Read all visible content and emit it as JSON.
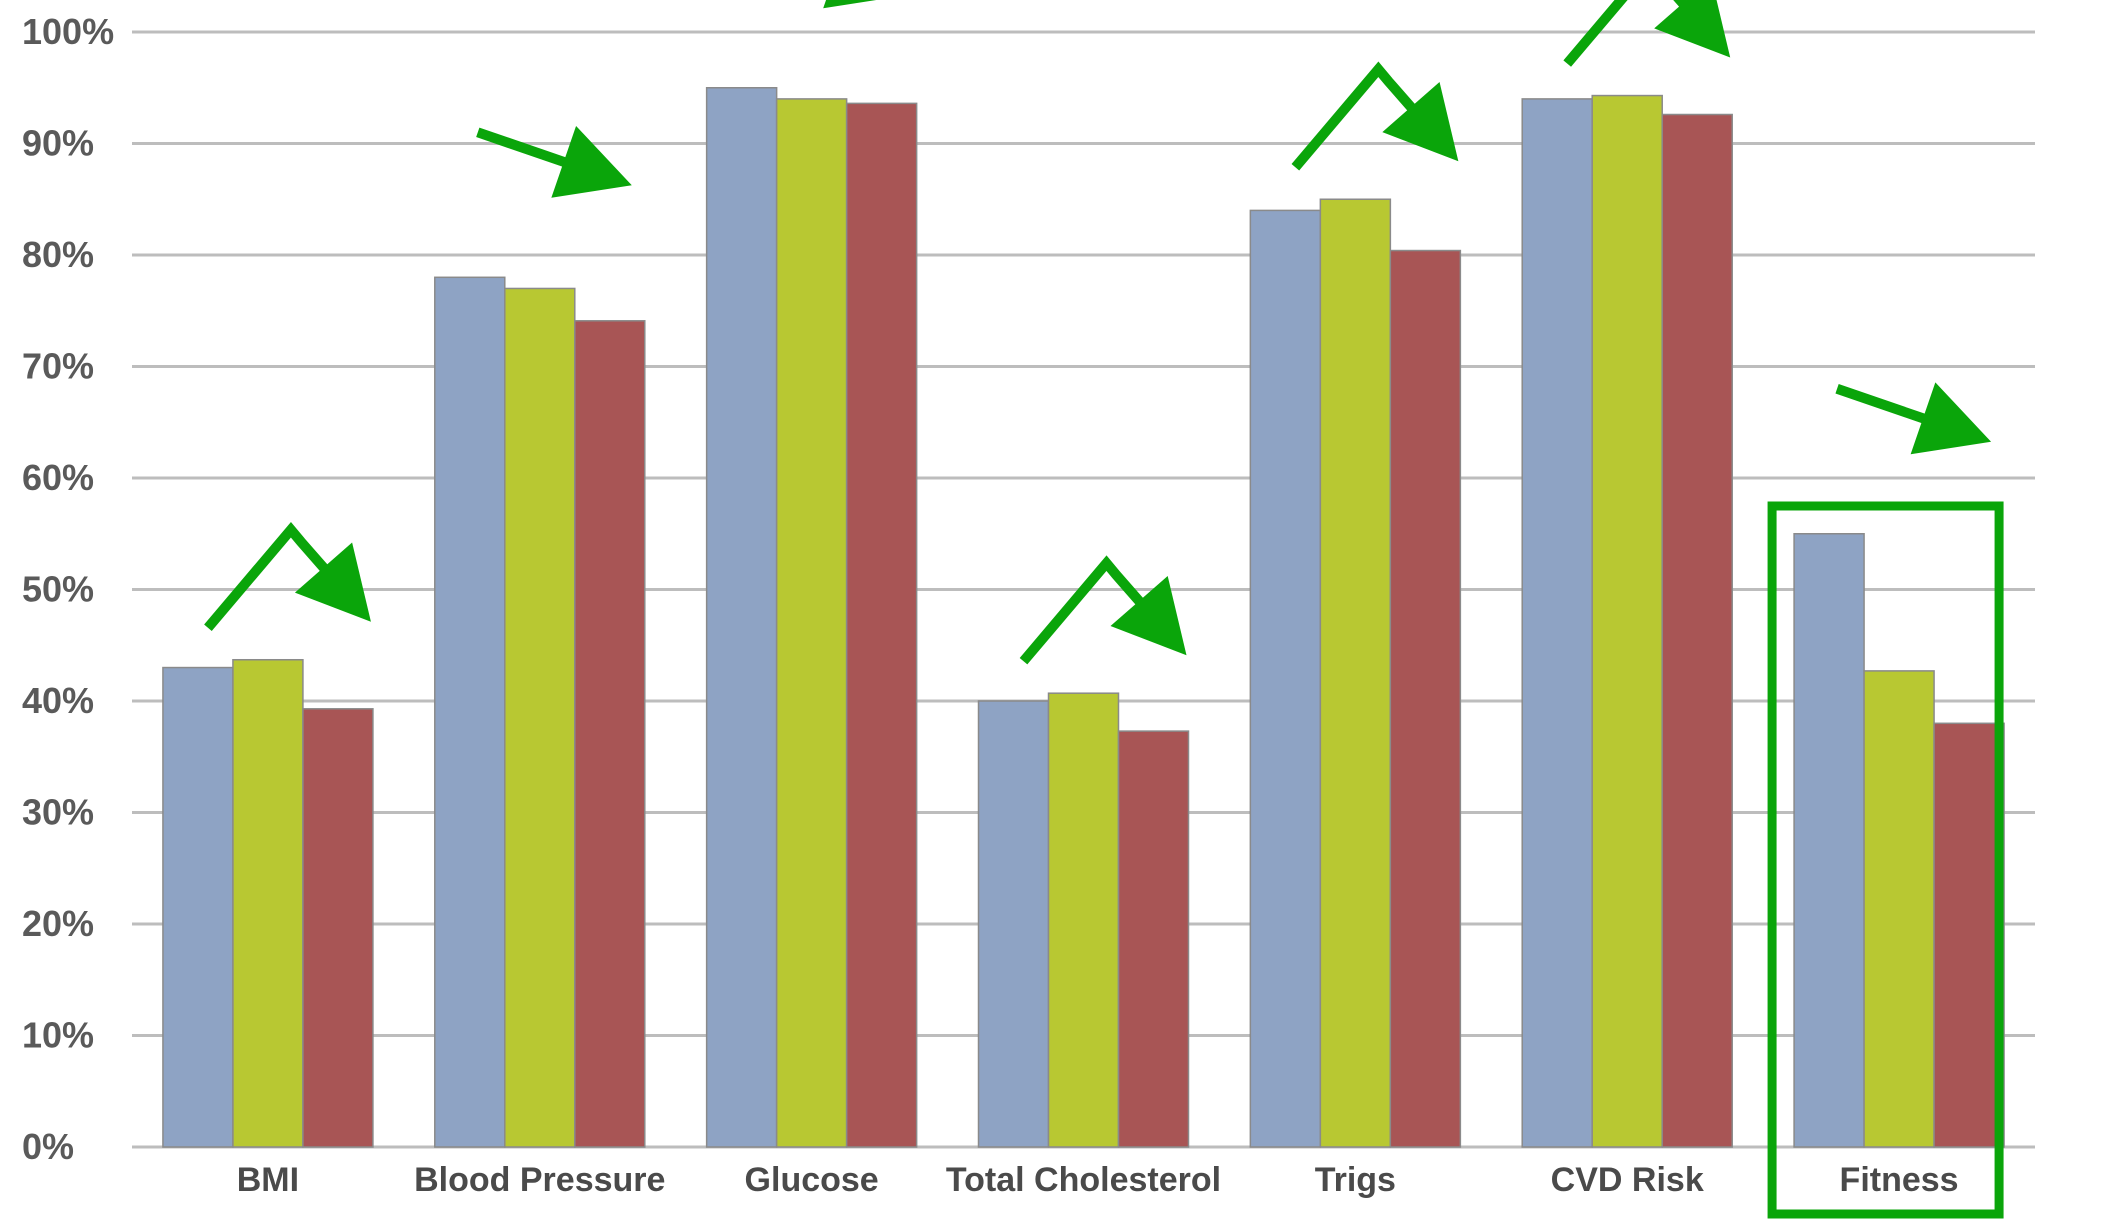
{
  "chart_data": {
    "type": "bar",
    "title": "",
    "xlabel": "",
    "ylabel": "",
    "ylim": [
      0,
      100
    ],
    "yticks": [
      "0%",
      "10%",
      "20%",
      "30%",
      "40%",
      "50%",
      "60%",
      "70%",
      "80%",
      "90%",
      "100%"
    ],
    "categories": [
      "BMI",
      "Blood Pressure",
      "Glucose",
      "Total Cholesterol",
      "Trigs",
      "CVD Risk",
      "Fitness"
    ],
    "series": [
      {
        "color": "#8ea3c4",
        "values": [
          43,
          78,
          95,
          40,
          84,
          94,
          55
        ]
      },
      {
        "color": "#b8c832",
        "values": [
          43.7,
          77,
          94,
          40.7,
          85,
          94.3,
          42.7
        ]
      },
      {
        "color": "#a85555",
        "values": [
          39.3,
          74.1,
          93.6,
          37.3,
          80.4,
          92.6,
          38
        ]
      }
    ],
    "grid": true,
    "legend": "none",
    "annotations": {
      "arrow_color": "#0aa50a",
      "arrows": [
        {
          "category": "BMI",
          "shape": "up-then-down"
        },
        {
          "category": "Blood Pressure",
          "shape": "down"
        },
        {
          "category": "Glucose",
          "shape": "down"
        },
        {
          "category": "Total Cholesterol",
          "shape": "up-then-down"
        },
        {
          "category": "Trigs",
          "shape": "up-then-down"
        },
        {
          "category": "CVD Risk",
          "shape": "up-then-down"
        },
        {
          "category": "Fitness",
          "shape": "down"
        }
      ],
      "highlight_box": {
        "category": "Fitness",
        "color": "#0aa50a"
      }
    }
  }
}
